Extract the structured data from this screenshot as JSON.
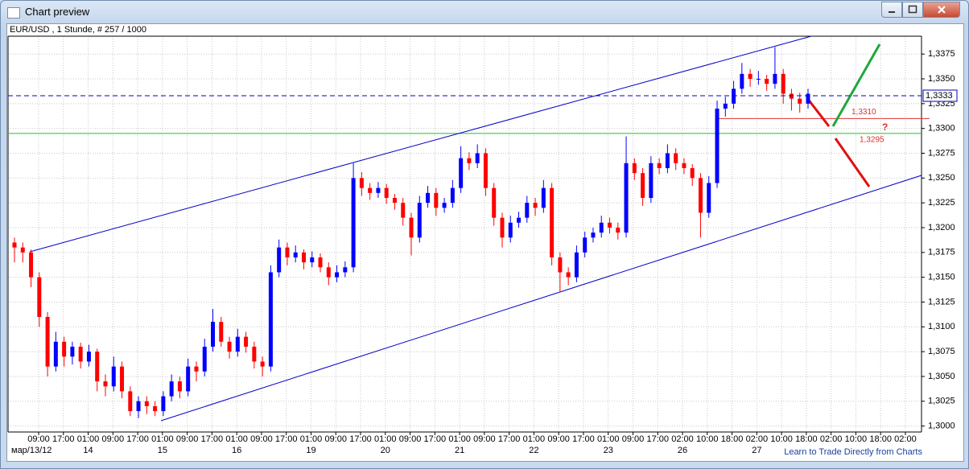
{
  "window": {
    "title": "Chart preview"
  },
  "chart_data": {
    "type": "candlestick",
    "title": "EUR/USD , 1 Stunde, # 257 / 1000",
    "up_color": "#0000ff",
    "down_color": "#ff0000",
    "grid": true,
    "ylim": [
      1.2994,
      1.3393
    ],
    "yticks": [
      {
        "value": 1.3,
        "label": "1,3000"
      },
      {
        "value": 1.3025,
        "label": "1,3025"
      },
      {
        "value": 1.305,
        "label": "1,3050"
      },
      {
        "value": 1.3075,
        "label": "1,3075"
      },
      {
        "value": 1.31,
        "label": "1,3100"
      },
      {
        "value": 1.3125,
        "label": "1,3125"
      },
      {
        "value": 1.315,
        "label": "1,3150"
      },
      {
        "value": 1.3175,
        "label": "1,3175"
      },
      {
        "value": 1.32,
        "label": "1,3200"
      },
      {
        "value": 1.3225,
        "label": "1,3225"
      },
      {
        "value": 1.325,
        "label": "1,3250"
      },
      {
        "value": 1.3275,
        "label": "1,3275"
      },
      {
        "value": 1.33,
        "label": "1,3300"
      },
      {
        "value": 1.3325,
        "label": "1,3325"
      },
      {
        "value": 1.335,
        "label": "1,3350"
      },
      {
        "value": 1.3375,
        "label": "1,3375"
      }
    ],
    "x_labels": [
      "09:00",
      "17:00",
      "01:00",
      "09:00",
      "17:00",
      "01:00",
      "09:00",
      "17:00",
      "01:00",
      "09:00",
      "17:00",
      "01:00",
      "09:00",
      "17:00",
      "01:00",
      "09:00",
      "17:00",
      "01:00",
      "09:00",
      "17:00",
      "01:00",
      "09:00",
      "17:00",
      "01:00",
      "09:00",
      "17:00",
      "02:00",
      "10:00",
      "18:00",
      "02:00",
      "10:00",
      "18:00",
      "02:00",
      "10:00",
      "18:00",
      "02:00"
    ],
    "date_labels": [
      "мар/13/12",
      "14",
      "15",
      "16",
      "19",
      "20",
      "21",
      "22",
      "23",
      "26",
      "27"
    ],
    "price_line": {
      "value": 1.3333,
      "label": "1,3333",
      "color": "#0000c8"
    },
    "levels": [
      {
        "value": 1.331,
        "label": "1,3310",
        "color": "#e03030"
      },
      {
        "value": 1.3295,
        "label": "1,3295",
        "color": "#1fc41f"
      }
    ],
    "annotation": "?",
    "candles": [
      [
        1.3185,
        1.319,
        1.3165,
        1.318
      ],
      [
        1.318,
        1.3185,
        1.3165,
        1.3175
      ],
      [
        1.3175,
        1.3178,
        1.314,
        1.315
      ],
      [
        1.315,
        1.3155,
        1.31,
        1.311
      ],
      [
        1.311,
        1.3115,
        1.305,
        1.306
      ],
      [
        1.306,
        1.3095,
        1.3055,
        1.3085
      ],
      [
        1.3085,
        1.309,
        1.306,
        1.307
      ],
      [
        1.307,
        1.3085,
        1.3062,
        1.308
      ],
      [
        1.308,
        1.3084,
        1.3058,
        1.3065
      ],
      [
        1.3065,
        1.3082,
        1.306,
        1.3075
      ],
      [
        1.3075,
        1.3078,
        1.3035,
        1.3045
      ],
      [
        1.3045,
        1.3052,
        1.303,
        1.304
      ],
      [
        1.304,
        1.307,
        1.3035,
        1.306
      ],
      [
        1.306,
        1.3065,
        1.3028,
        1.3035
      ],
      [
        1.3035,
        1.304,
        1.301,
        1.3015
      ],
      [
        1.3015,
        1.303,
        1.3008,
        1.3025
      ],
      [
        1.3025,
        1.303,
        1.3012,
        1.302
      ],
      [
        1.302,
        1.3025,
        1.301,
        1.3015
      ],
      [
        1.3015,
        1.3035,
        1.301,
        1.303
      ],
      [
        1.303,
        1.3052,
        1.3025,
        1.3045
      ],
      [
        1.3045,
        1.305,
        1.3028,
        1.3035
      ],
      [
        1.3035,
        1.3068,
        1.303,
        1.306
      ],
      [
        1.306,
        1.3065,
        1.3045,
        1.3055
      ],
      [
        1.3055,
        1.3088,
        1.305,
        1.308
      ],
      [
        1.308,
        1.3118,
        1.3075,
        1.3105
      ],
      [
        1.3105,
        1.311,
        1.308,
        1.3085
      ],
      [
        1.3085,
        1.309,
        1.3068,
        1.3075
      ],
      [
        1.3075,
        1.3098,
        1.307,
        1.309
      ],
      [
        1.309,
        1.3095,
        1.3074,
        1.308
      ],
      [
        1.308,
        1.3085,
        1.3058,
        1.3065
      ],
      [
        1.3065,
        1.307,
        1.305,
        1.306
      ],
      [
        1.306,
        1.3162,
        1.3055,
        1.3155
      ],
      [
        1.3155,
        1.3188,
        1.315,
        1.318
      ],
      [
        1.318,
        1.3185,
        1.3162,
        1.317
      ],
      [
        1.317,
        1.3182,
        1.3165,
        1.3175
      ],
      [
        1.3175,
        1.3178,
        1.3158,
        1.3165
      ],
      [
        1.3165,
        1.3176,
        1.316,
        1.317
      ],
      [
        1.317,
        1.3174,
        1.3155,
        1.316
      ],
      [
        1.316,
        1.3165,
        1.3142,
        1.315
      ],
      [
        1.315,
        1.3162,
        1.3145,
        1.3155
      ],
      [
        1.3155,
        1.3166,
        1.315,
        1.316
      ],
      [
        1.316,
        1.3265,
        1.3155,
        1.325
      ],
      [
        1.325,
        1.3256,
        1.3232,
        1.324
      ],
      [
        1.324,
        1.3245,
        1.3228,
        1.3235
      ],
      [
        1.3235,
        1.3246,
        1.323,
        1.324
      ],
      [
        1.324,
        1.3244,
        1.3224,
        1.323
      ],
      [
        1.323,
        1.3234,
        1.3218,
        1.3225
      ],
      [
        1.3225,
        1.323,
        1.3202,
        1.321
      ],
      [
        1.321,
        1.3215,
        1.3172,
        1.319
      ],
      [
        1.319,
        1.3232,
        1.3185,
        1.3225
      ],
      [
        1.3225,
        1.3242,
        1.322,
        1.3235
      ],
      [
        1.3235,
        1.324,
        1.3212,
        1.322
      ],
      [
        1.322,
        1.323,
        1.3215,
        1.3225
      ],
      [
        1.3225,
        1.3248,
        1.322,
        1.324
      ],
      [
        1.324,
        1.3282,
        1.3235,
        1.327
      ],
      [
        1.327,
        1.3276,
        1.3258,
        1.3265
      ],
      [
        1.3265,
        1.3284,
        1.326,
        1.3275
      ],
      [
        1.3275,
        1.328,
        1.3232,
        1.324
      ],
      [
        1.324,
        1.3245,
        1.3202,
        1.321
      ],
      [
        1.321,
        1.3215,
        1.318,
        1.319
      ],
      [
        1.319,
        1.3212,
        1.3185,
        1.3205
      ],
      [
        1.3205,
        1.3216,
        1.32,
        1.321
      ],
      [
        1.321,
        1.3232,
        1.3205,
        1.3225
      ],
      [
        1.3225,
        1.323,
        1.3212,
        1.322
      ],
      [
        1.322,
        1.3248,
        1.3215,
        1.324
      ],
      [
        1.324,
        1.3245,
        1.3162,
        1.317
      ],
      [
        1.317,
        1.3175,
        1.3135,
        1.3155
      ],
      [
        1.3155,
        1.316,
        1.3142,
        1.315
      ],
      [
        1.315,
        1.3182,
        1.3145,
        1.3175
      ],
      [
        1.3175,
        1.3196,
        1.317,
        1.319
      ],
      [
        1.319,
        1.32,
        1.3185,
        1.3195
      ],
      [
        1.3195,
        1.3212,
        1.319,
        1.3205
      ],
      [
        1.3205,
        1.321,
        1.3194,
        1.32
      ],
      [
        1.32,
        1.3205,
        1.3188,
        1.3195
      ],
      [
        1.3195,
        1.3292,
        1.319,
        1.3265
      ],
      [
        1.3265,
        1.327,
        1.3248,
        1.3255
      ],
      [
        1.3255,
        1.326,
        1.3222,
        1.323
      ],
      [
        1.323,
        1.3272,
        1.3225,
        1.3265
      ],
      [
        1.3265,
        1.327,
        1.3254,
        1.326
      ],
      [
        1.326,
        1.3284,
        1.3255,
        1.3275
      ],
      [
        1.3275,
        1.328,
        1.3258,
        1.3265
      ],
      [
        1.3265,
        1.327,
        1.3254,
        1.326
      ],
      [
        1.326,
        1.3264,
        1.3242,
        1.325
      ],
      [
        1.325,
        1.3255,
        1.319,
        1.3215
      ],
      [
        1.3215,
        1.3252,
        1.321,
        1.3245
      ],
      [
        1.3245,
        1.3328,
        1.324,
        1.332
      ],
      [
        1.332,
        1.3332,
        1.3312,
        1.3325
      ],
      [
        1.3325,
        1.3348,
        1.332,
        1.334
      ],
      [
        1.334,
        1.3366,
        1.3335,
        1.3355
      ],
      [
        1.3355,
        1.336,
        1.3342,
        1.335
      ],
      [
        1.335,
        1.3358,
        1.3344,
        1.335
      ],
      [
        1.335,
        1.3354,
        1.3338,
        1.3345
      ],
      [
        1.3345,
        1.3382,
        1.334,
        1.3355
      ],
      [
        1.3355,
        1.336,
        1.3325,
        1.3335
      ],
      [
        1.3335,
        1.334,
        1.3318,
        1.333
      ],
      [
        1.333,
        1.3336,
        1.3316,
        1.3325
      ],
      [
        1.3325,
        1.334,
        1.332,
        1.3335
      ]
    ]
  },
  "footer_link": "Learn to Trade Directly from Charts"
}
